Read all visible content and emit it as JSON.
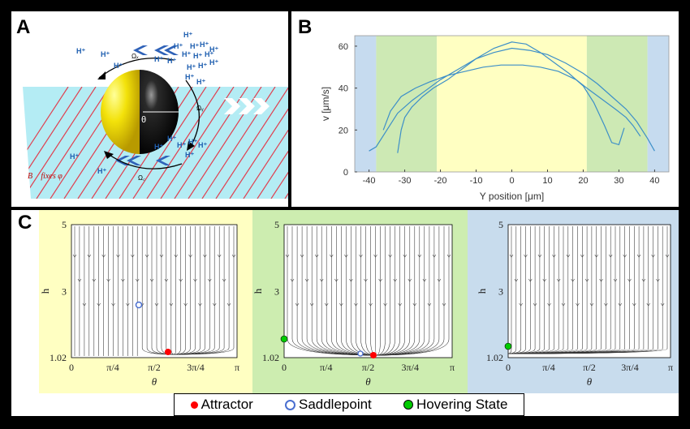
{
  "panel_a": {
    "label": "A",
    "ions": [
      "H⁺",
      "H⁺",
      "H⁺",
      "H⁺",
      "H⁺",
      "H⁺",
      "H⁺",
      "H⁺",
      "H⁺",
      "H⁺",
      "H⁺",
      "H⁺",
      "H⁺",
      "H⁺",
      "H⁺",
      "H⁺",
      "H⁺",
      "H⁺",
      "H⁺",
      "H⁺",
      "H⁺",
      "H⁺",
      "H⁺",
      "H⁺",
      "H⁺",
      "H⁺"
    ],
    "theta": "θ",
    "omega_x": "Ωₓ",
    "omega_y": "Ωᵧ",
    "omega_z": "Ω꜀",
    "b_fixes": "B⃗ fixes φ"
  },
  "panel_b": {
    "label": "B",
    "ylabel": "v [μm/s]",
    "xlabel": "Y position [μm]",
    "region_colors": {
      "blue": "#c6dbef",
      "green": "#cde9b4",
      "yellow": "#ffffc2"
    },
    "line_color": "#3d8fc8"
  },
  "panel_c": {
    "label": "C",
    "ylabel": "h",
    "xlabel": "θ",
    "yticks": [
      "5",
      "3",
      "1.02"
    ],
    "xticks": [
      "0",
      "π/4",
      "π/2",
      "3π/4",
      "π"
    ],
    "bg_colors": [
      "#ffffc2",
      "#cdedb0",
      "#c8dced"
    ]
  },
  "legend": {
    "attractor": "Attractor",
    "saddlepoint": "Saddlepoint",
    "hovering": "Hovering State",
    "attractor_color": "#ff0000",
    "saddle_color": "#4a6fd0",
    "hover_color": "#00cc00"
  },
  "chart_data": {
    "type": "line",
    "xlabel": "Y position [μm]",
    "ylabel": "v [μm/s]",
    "xlim": [
      -44,
      44
    ],
    "ylim": [
      0,
      65
    ],
    "xticks": [
      -40,
      -30,
      -20,
      -10,
      0,
      10,
      20,
      30,
      40
    ],
    "yticks": [
      0,
      20,
      40,
      60
    ],
    "regions": [
      {
        "from": -44,
        "to": -38,
        "color": "blue"
      },
      {
        "from": -38,
        "to": -21,
        "color": "green"
      },
      {
        "from": -21,
        "to": 21,
        "color": "yellow"
      },
      {
        "from": 21,
        "to": 38,
        "color": "green"
      },
      {
        "from": 38,
        "to": 44,
        "color": "blue"
      }
    ],
    "series": [
      {
        "x": [
          -40,
          -38,
          -35,
          -32,
          -28,
          -24,
          -20,
          -15,
          -10,
          -5,
          0,
          5,
          10,
          15,
          20,
          24,
          28,
          32,
          35,
          38,
          40
        ],
        "y": [
          10,
          12,
          20,
          28,
          34,
          39,
          44,
          49,
          54,
          57,
          59,
          58,
          56,
          52,
          47,
          42,
          36,
          30,
          24,
          16,
          10
        ]
      },
      {
        "x": [
          -32,
          -31,
          -30,
          -28,
          -25,
          -22,
          -18,
          -14,
          -10,
          -5,
          0,
          4,
          8,
          12,
          16,
          20,
          23,
          26,
          28,
          30,
          31.5
        ],
        "y": [
          9,
          20,
          26,
          31,
          36,
          40,
          44,
          49,
          54,
          59,
          62,
          61,
          57,
          52,
          47,
          41,
          33,
          22,
          14,
          13,
          21
        ]
      },
      {
        "x": [
          -36,
          -34,
          -31,
          -27,
          -23,
          -18,
          -13,
          -8,
          -3,
          0,
          3,
          8,
          13,
          18,
          21,
          25,
          29,
          32,
          34,
          36
        ],
        "y": [
          20,
          29,
          36,
          40,
          43,
          46,
          48,
          50,
          51,
          51,
          51,
          50,
          48,
          44,
          40,
          35,
          30,
          26,
          22,
          17
        ]
      }
    ]
  }
}
